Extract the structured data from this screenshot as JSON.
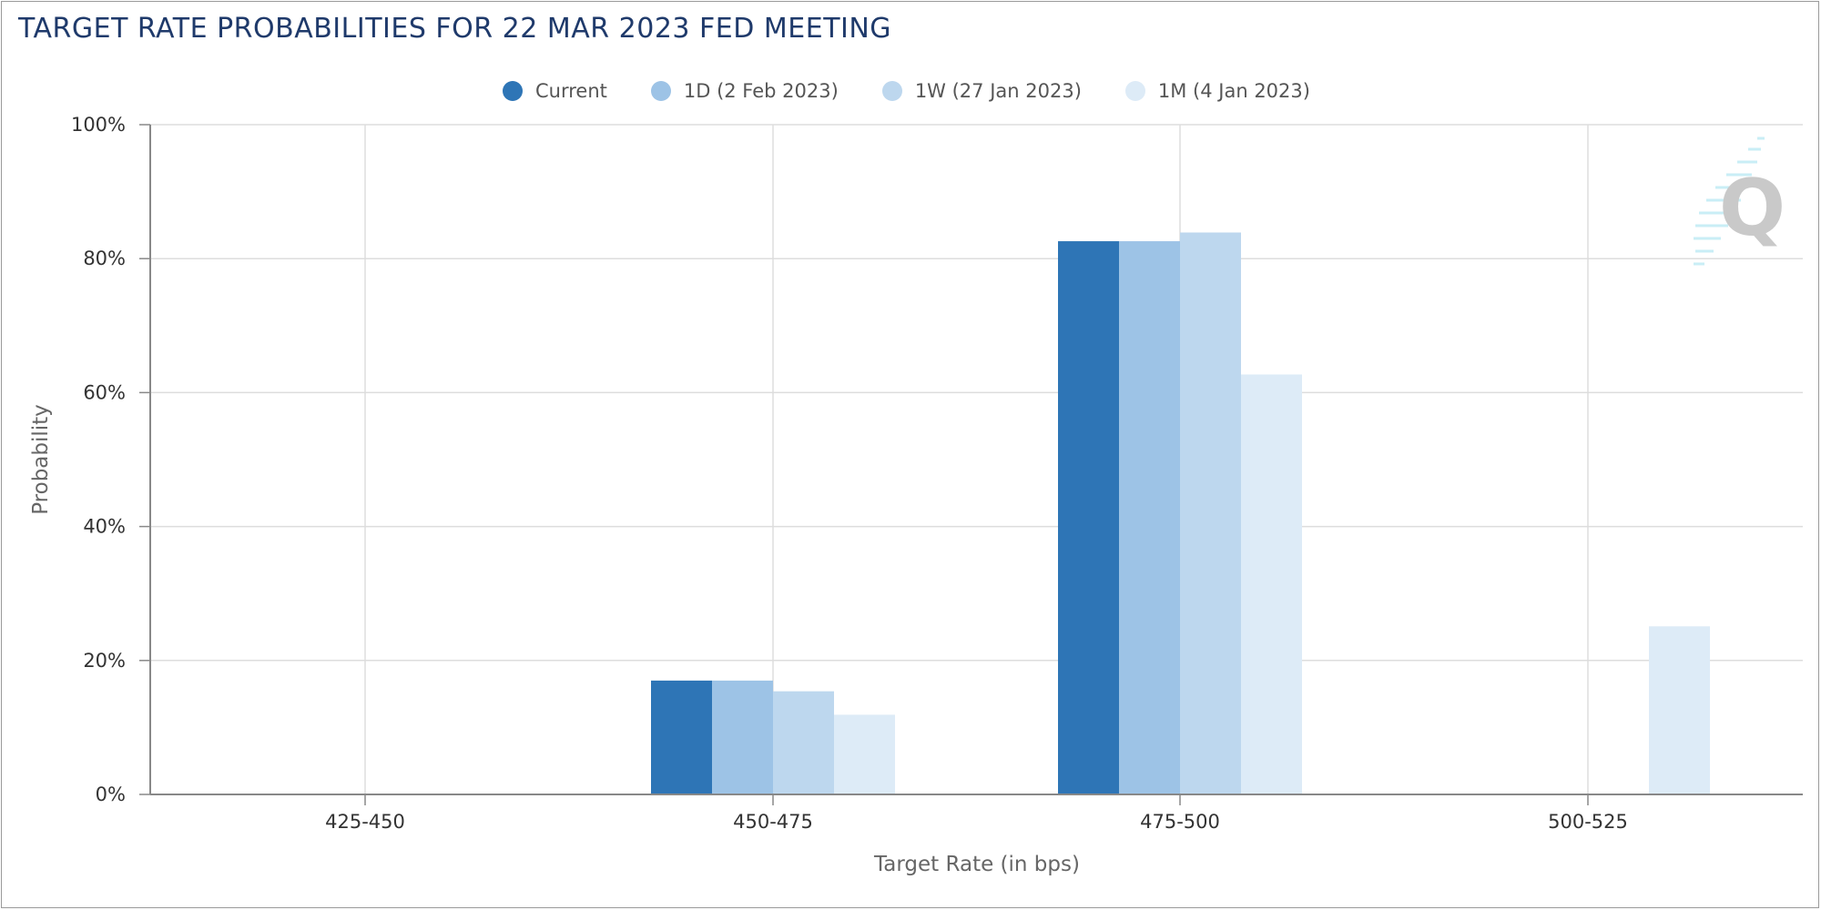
{
  "chart_data": {
    "type": "bar",
    "title": "TARGET RATE PROBABILITIES FOR 22 MAR 2023 FED MEETING",
    "xlabel": "Target Rate (in bps)",
    "ylabel": "Probability",
    "categories": [
      "425-450",
      "450-475",
      "475-500",
      "500-525"
    ],
    "yticks": [
      "0%",
      "20%",
      "40%",
      "60%",
      "80%",
      "100%"
    ],
    "ylim": [
      0,
      100
    ],
    "grid": true,
    "legend_position": "top-center",
    "series": [
      {
        "name": "Current",
        "color": "#2e75b6",
        "values": [
          0,
          17.0,
          82.6,
          0
        ]
      },
      {
        "name": "1D (2 Feb 2023)",
        "color": "#9dc3e6",
        "values": [
          0,
          17.0,
          82.6,
          0
        ]
      },
      {
        "name": "1W (27 Jan 2023)",
        "color": "#bdd7ee",
        "values": [
          0,
          15.4,
          83.9,
          0
        ]
      },
      {
        "name": "1M (4 Jan 2023)",
        "color": "#ddebf7",
        "values": [
          0,
          11.9,
          62.7,
          25.1
        ]
      }
    ]
  }
}
